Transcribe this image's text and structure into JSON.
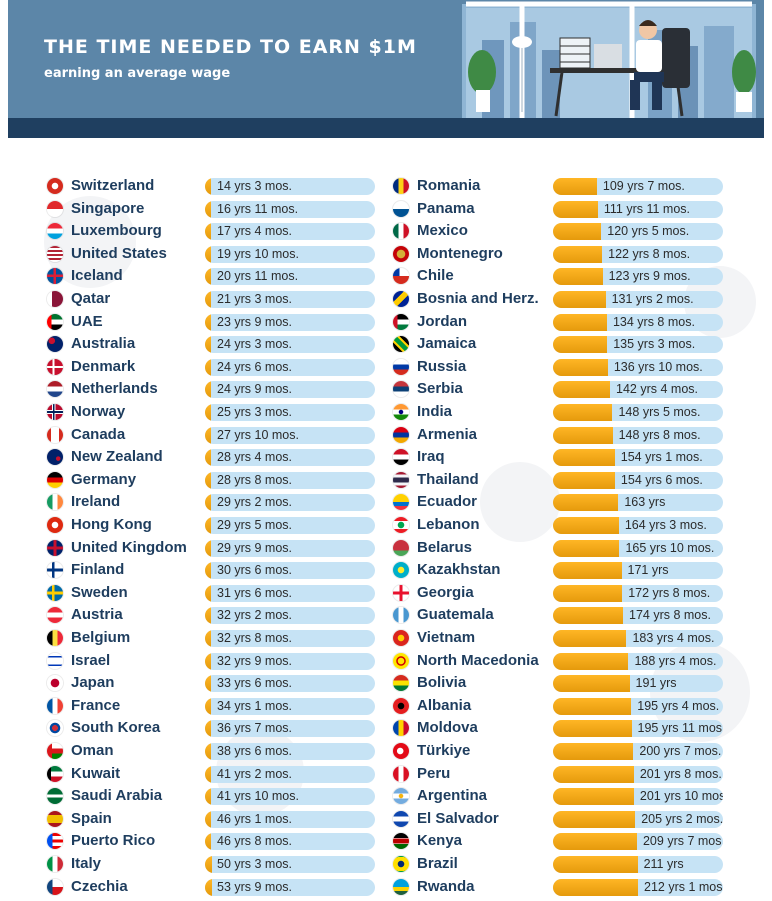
{
  "header": {
    "title": "THE TIME NEEDED TO EARN $1M",
    "subtitle": "earning an average wage"
  },
  "colors": {
    "header_bg": "#5c86a8",
    "header_band": "#1f3f60",
    "bar_fill": "#f5a81a",
    "bar_track": "#c6e3f5",
    "country_text": "#1e3d5e"
  },
  "chart_data": {
    "type": "bar",
    "orientation": "horizontal",
    "value_unit": "years",
    "max_value": 212.08,
    "rows": [
      {
        "country": "Switzerland",
        "label": "14 yrs 3 mos.",
        "value": 14.25,
        "flag": "switzerland-flag"
      },
      {
        "country": "Singapore",
        "label": "16 yrs 11 mos.",
        "value": 16.92,
        "flag": "singapore-flag"
      },
      {
        "country": "Luxembourg",
        "label": "17 yrs 4 mos.",
        "value": 17.33,
        "flag": "luxembourg-flag"
      },
      {
        "country": "United States",
        "label": "19 yrs 10 mos.",
        "value": 19.83,
        "flag": "united-states-flag"
      },
      {
        "country": "Iceland",
        "label": "20 yrs 11 mos.",
        "value": 20.92,
        "flag": "iceland-flag"
      },
      {
        "country": "Qatar",
        "label": "21 yrs 3 mos.",
        "value": 21.25,
        "flag": "qatar-flag"
      },
      {
        "country": "UAE",
        "label": "23 yrs 9 mos.",
        "value": 23.75,
        "flag": "uae-flag"
      },
      {
        "country": "Australia",
        "label": "24 yrs 3 mos.",
        "value": 24.25,
        "flag": "australia-flag"
      },
      {
        "country": "Denmark",
        "label": "24 yrs 6 mos.",
        "value": 24.5,
        "flag": "denmark-flag"
      },
      {
        "country": "Netherlands",
        "label": "24 yrs 9 mos.",
        "value": 24.75,
        "flag": "netherlands-flag"
      },
      {
        "country": "Norway",
        "label": "25 yrs 3 mos.",
        "value": 25.25,
        "flag": "norway-flag"
      },
      {
        "country": "Canada",
        "label": "27 yrs 10 mos.",
        "value": 27.83,
        "flag": "canada-flag"
      },
      {
        "country": "New Zealand",
        "label": "28 yrs 4 mos.",
        "value": 28.33,
        "flag": "new-zealand-flag"
      },
      {
        "country": "Germany",
        "label": "28 yrs 8 mos.",
        "value": 28.67,
        "flag": "germany-flag"
      },
      {
        "country": "Ireland",
        "label": "29 yrs 2 mos.",
        "value": 29.17,
        "flag": "ireland-flag"
      },
      {
        "country": "Hong Kong",
        "label": "29 yrs 5 mos.",
        "value": 29.42,
        "flag": "hong-kong-flag"
      },
      {
        "country": "United Kingdom",
        "label": "29 yrs 9 mos.",
        "value": 29.75,
        "flag": "united-kingdom-flag"
      },
      {
        "country": "Finland",
        "label": "30 yrs 6 mos.",
        "value": 30.5,
        "flag": "finland-flag"
      },
      {
        "country": "Sweden",
        "label": "31 yrs 6 mos.",
        "value": 31.5,
        "flag": "sweden-flag"
      },
      {
        "country": "Austria",
        "label": "32 yrs 2 mos.",
        "value": 32.17,
        "flag": "austria-flag"
      },
      {
        "country": "Belgium",
        "label": "32 yrs 8 mos.",
        "value": 32.67,
        "flag": "belgium-flag"
      },
      {
        "country": "Israel",
        "label": "32 yrs 9 mos.",
        "value": 32.75,
        "flag": "israel-flag"
      },
      {
        "country": "Japan",
        "label": "33 yrs 6 mos.",
        "value": 33.5,
        "flag": "japan-flag"
      },
      {
        "country": "France",
        "label": "34 yrs 1 mos.",
        "value": 34.08,
        "flag": "france-flag"
      },
      {
        "country": "South Korea",
        "label": "36 yrs 7 mos.",
        "value": 36.58,
        "flag": "south-korea-flag"
      },
      {
        "country": "Oman",
        "label": "38 yrs 6 mos.",
        "value": 38.5,
        "flag": "oman-flag"
      },
      {
        "country": "Kuwait",
        "label": "41 yrs 2 mos.",
        "value": 41.17,
        "flag": "kuwait-flag"
      },
      {
        "country": "Saudi Arabia",
        "label": "41 yrs 10 mos.",
        "value": 41.83,
        "flag": "saudi-arabia-flag"
      },
      {
        "country": "Spain",
        "label": "46 yrs 1 mos.",
        "value": 46.08,
        "flag": "spain-flag"
      },
      {
        "country": "Puerto Rico",
        "label": "46 yrs 8 mos.",
        "value": 46.67,
        "flag": "puerto-rico-flag"
      },
      {
        "country": "Italy",
        "label": "50 yrs 3 mos.",
        "value": 50.25,
        "flag": "italy-flag"
      },
      {
        "country": "Czechia",
        "label": "53 yrs 9 mos.",
        "value": 53.75,
        "flag": "czechia-flag"
      },
      {
        "country": "Romania",
        "label": "109 yrs 7 mos.",
        "value": 109.58,
        "flag": "romania-flag"
      },
      {
        "country": "Panama",
        "label": "111 yrs 11 mos.",
        "value": 111.92,
        "flag": "panama-flag"
      },
      {
        "country": "Mexico",
        "label": "120 yrs 5 mos.",
        "value": 120.42,
        "flag": "mexico-flag"
      },
      {
        "country": "Montenegro",
        "label": "122 yrs 8 mos.",
        "value": 122.67,
        "flag": "montenegro-flag"
      },
      {
        "country": "Chile",
        "label": "123 yrs 9 mos.",
        "value": 123.75,
        "flag": "chile-flag"
      },
      {
        "country": "Bosnia and Herz.",
        "label": "131 yrs 2 mos.",
        "value": 131.17,
        "flag": "bosnia-flag"
      },
      {
        "country": "Jordan",
        "label": "134 yrs 8 mos.",
        "value": 134.67,
        "flag": "jordan-flag"
      },
      {
        "country": "Jamaica",
        "label": "135 yrs 3 mos.",
        "value": 135.25,
        "flag": "jamaica-flag"
      },
      {
        "country": "Russia",
        "label": "136 yrs 10 mos.",
        "value": 136.83,
        "flag": "russia-flag"
      },
      {
        "country": "Serbia",
        "label": "142 yrs 4 mos.",
        "value": 142.33,
        "flag": "serbia-flag"
      },
      {
        "country": "India",
        "label": "148 yrs 5 mos.",
        "value": 148.42,
        "flag": "india-flag"
      },
      {
        "country": "Armenia",
        "label": "148 yrs 8 mos.",
        "value": 148.67,
        "flag": "armenia-flag"
      },
      {
        "country": "Iraq",
        "label": "154 yrs 1 mos.",
        "value": 154.08,
        "flag": "iraq-flag"
      },
      {
        "country": "Thailand",
        "label": "154 yrs 6 mos.",
        "value": 154.5,
        "flag": "thailand-flag"
      },
      {
        "country": "Ecuador",
        "label": "163 yrs",
        "value": 163,
        "flag": "ecuador-flag"
      },
      {
        "country": "Lebanon",
        "label": "164 yrs 3 mos.",
        "value": 164.25,
        "flag": "lebanon-flag"
      },
      {
        "country": "Belarus",
        "label": "165 yrs 10 mos.",
        "value": 165.83,
        "flag": "belarus-flag"
      },
      {
        "country": "Kazakhstan",
        "label": "171 yrs",
        "value": 171,
        "flag": "kazakhstan-flag"
      },
      {
        "country": "Georgia",
        "label": "172 yrs 8 mos.",
        "value": 172.67,
        "flag": "georgia-flag"
      },
      {
        "country": "Guatemala",
        "label": "174 yrs 8 mos.",
        "value": 174.67,
        "flag": "guatemala-flag"
      },
      {
        "country": "Vietnam",
        "label": "183 yrs 4 mos.",
        "value": 183.33,
        "flag": "vietnam-flag"
      },
      {
        "country": "North Macedonia",
        "label": "188 yrs 4 mos.",
        "value": 188.33,
        "flag": "north-macedonia-flag"
      },
      {
        "country": "Bolivia",
        "label": "191 yrs",
        "value": 191,
        "flag": "bolivia-flag"
      },
      {
        "country": "Albania",
        "label": "195 yrs 4 mos.",
        "value": 195.33,
        "flag": "albania-flag"
      },
      {
        "country": "Moldova",
        "label": "195 yrs 11 mos.",
        "value": 195.92,
        "flag": "moldova-flag"
      },
      {
        "country": "Türkiye",
        "label": "200 yrs 7 mos.",
        "value": 200.58,
        "flag": "turkiye-flag"
      },
      {
        "country": "Peru",
        "label": "201 yrs 8 mos.",
        "value": 201.67,
        "flag": "peru-flag"
      },
      {
        "country": "Argentina",
        "label": "201 yrs 10 mos.",
        "value": 201.83,
        "flag": "argentina-flag"
      },
      {
        "country": "El Salvador",
        "label": "205 yrs 2 mos.",
        "value": 205.17,
        "flag": "el-salvador-flag"
      },
      {
        "country": "Kenya",
        "label": "209 yrs 7 mos.",
        "value": 209.58,
        "flag": "kenya-flag"
      },
      {
        "country": "Brazil",
        "label": "211 yrs",
        "value": 211,
        "flag": "brazil-flag"
      },
      {
        "country": "Rwanda",
        "label": "212 yrs 1 mos.",
        "value": 212.08,
        "flag": "rwanda-flag"
      }
    ]
  }
}
